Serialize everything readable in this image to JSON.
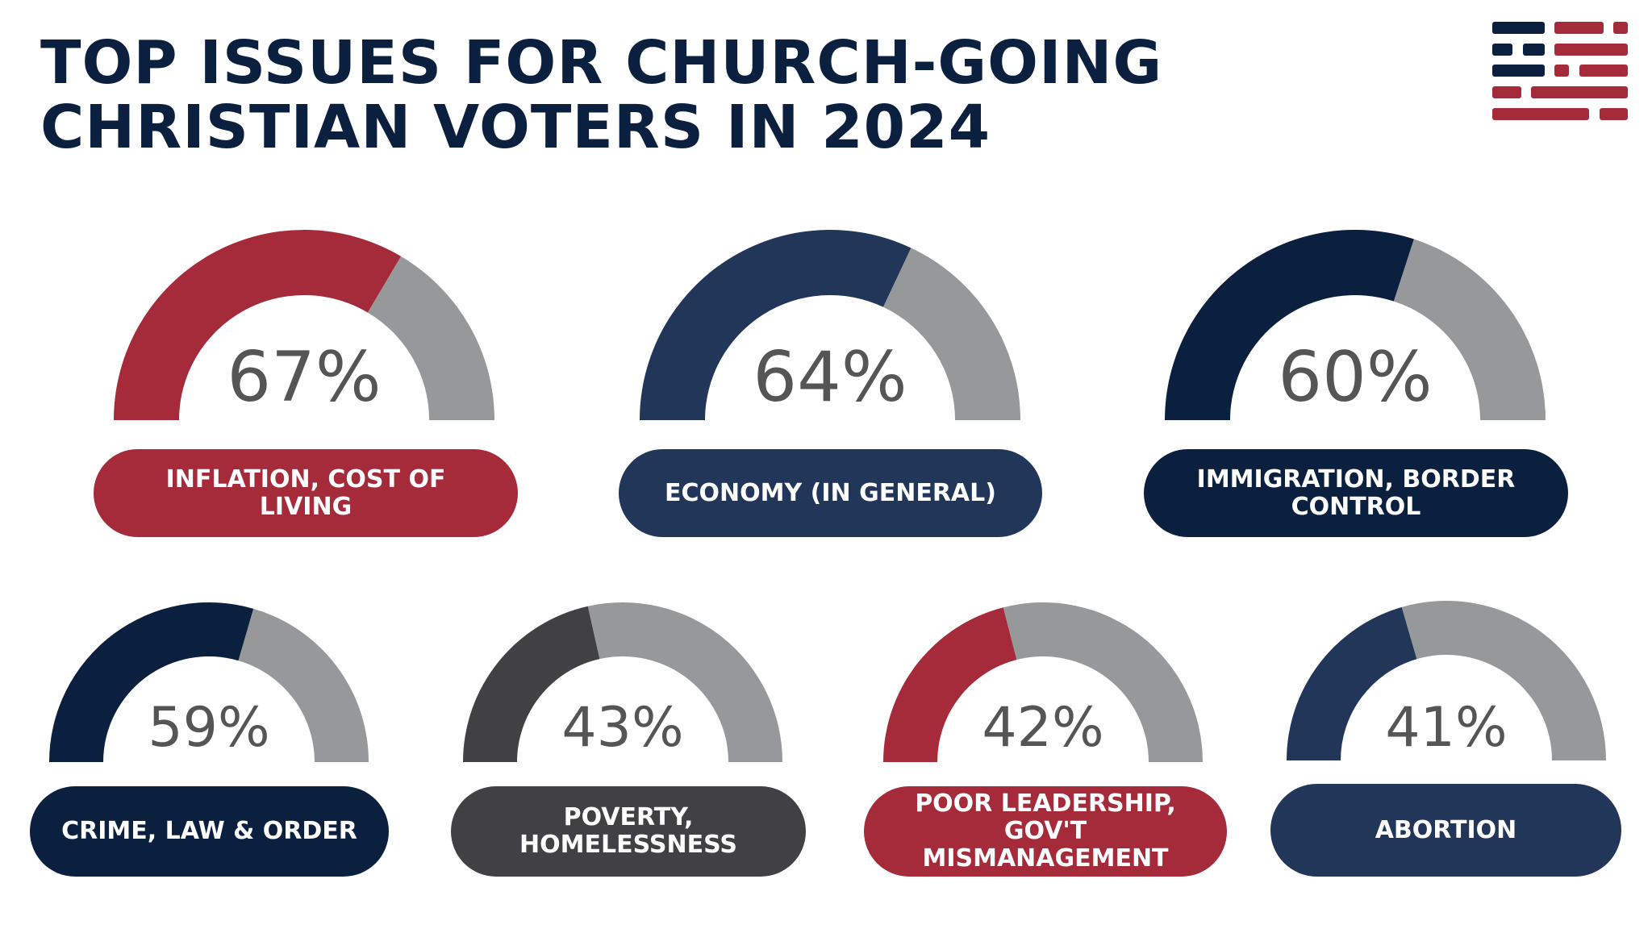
{
  "title_lines": [
    "TOP ISSUES FOR CHURCH-GOING",
    "CHRISTIAN VOTERS IN 2024"
  ],
  "colors": {
    "red": "#a52a3a",
    "navy": "#22365a",
    "dark_navy": "#0b1f3f",
    "dark_gray": "#414143",
    "remainder_gray": "#97989a",
    "percent_text": "#555555"
  },
  "logo_icon": "striped-flag-logo",
  "chart_data": {
    "type": "gauge",
    "unit": "%",
    "range": [
      0,
      100
    ],
    "items": [
      {
        "label": "INFLATION, COST OF LIVING",
        "value": 67,
        "value_label": "67%",
        "color": "#a52a3a"
      },
      {
        "label": "ECONOMY (IN GENERAL)",
        "value": 64,
        "value_label": "64%",
        "color": "#22365a"
      },
      {
        "label": "IMMIGRATION, BORDER CONTROL",
        "value": 60,
        "value_label": "60%",
        "color": "#0b1f3f"
      },
      {
        "label": "CRIME, LAW & ORDER",
        "value": 59,
        "value_label": "59%",
        "color": "#0b1f3f"
      },
      {
        "label": "POVERTY, HOMELESSNESS",
        "value": 43,
        "value_label": "43%",
        "color": "#414143"
      },
      {
        "label": "POOR LEADERSHIP, GOV'T MISMANAGEMENT",
        "value": 42,
        "value_label": "42%",
        "color": "#a52a3a"
      },
      {
        "label": "ABORTION",
        "value": 41,
        "value_label": "41%",
        "color": "#22365a"
      }
    ]
  }
}
